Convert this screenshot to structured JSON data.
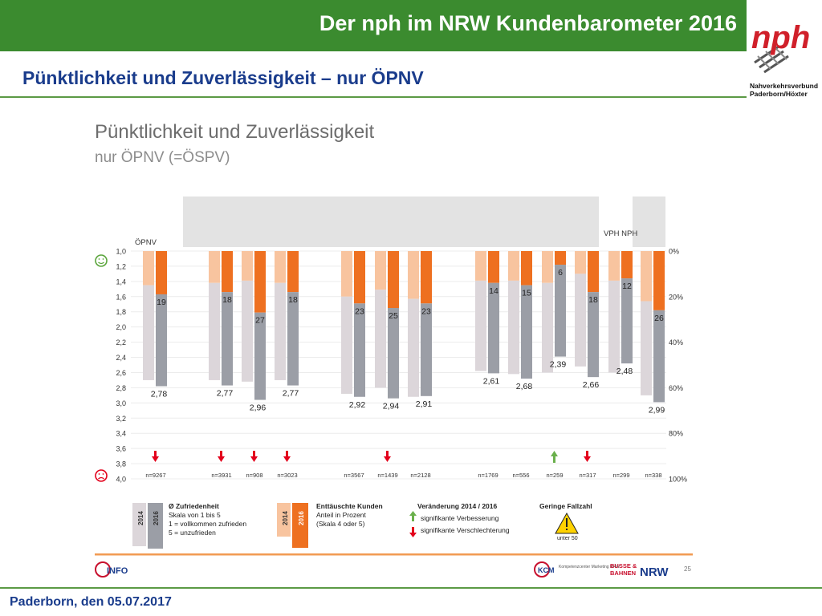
{
  "header": {
    "title": "Der nph im NRW Kundenbarometer 2016"
  },
  "logo": {
    "mark": "nph",
    "line1": "Nahverkehrsverbund",
    "line2": "Paderborn/Höxter"
  },
  "subtitle": "Pünktlichkeit und Zuverlässigkeit – nur ÖPNV",
  "footer": {
    "text": "Paderborn, den 05.07.2017"
  },
  "slide": {
    "page_number": "25",
    "logo_left": "INFO",
    "logo_mid": "KCM",
    "logo_mid_small": "Kompetenzcenter Marketing NRW",
    "logo_right_1": "BUSSE &",
    "logo_right_2": "BAHNEN",
    "logo_right_3": "NRW"
  },
  "colors": {
    "green": "#3b8b2f",
    "bar_2014": "#dcd6da",
    "bar_2016": "#9b9ea6",
    "orange_2014": "#f8c49f",
    "orange_2016": "#ee7020",
    "red_arrow": "#e3001b",
    "green_arrow": "#6ab04c",
    "gray_band": "#e3e3e3",
    "accent_line": "#f29a52"
  },
  "chart_data": {
    "type": "bar",
    "title": "Pünktlichkeit und Zuverlässigkeit",
    "subtitle": "nur ÖPNV (=ÖSPV)",
    "group_labels": [
      "ÖPNV",
      "VPH NPH"
    ],
    "left_axis": {
      "ticks": [
        "1,0",
        "1,2",
        "1,4",
        "1,6",
        "1,8",
        "2,0",
        "2,2",
        "2,4",
        "2,6",
        "2,8",
        "3,0",
        "3,2",
        "3,4",
        "3,6",
        "3,8",
        "4,0"
      ],
      "range": [
        1.0,
        4.0
      ]
    },
    "right_axis": {
      "ticks": [
        "0%",
        "20%",
        "40%",
        "60%",
        "80%",
        "100%"
      ],
      "range": [
        0,
        100
      ]
    },
    "categories": [
      {
        "n": "n=9267",
        "score_2014": 2.7,
        "score_2016": 2.78,
        "score_label": "2,78",
        "pct_2014": 15,
        "pct_2016": 19,
        "pct_label": "19",
        "change": "down"
      },
      {
        "n": "n=3931",
        "score_2014": 2.7,
        "score_2016": 2.77,
        "score_label": "2,77",
        "pct_2014": 14,
        "pct_2016": 18,
        "pct_label": "18",
        "change": "down"
      },
      {
        "n": "n=908",
        "score_2014": 2.72,
        "score_2016": 2.96,
        "score_label": "2,96",
        "pct_2014": 13,
        "pct_2016": 27,
        "pct_label": "27",
        "change": "down"
      },
      {
        "n": "n=3023",
        "score_2014": 2.7,
        "score_2016": 2.77,
        "score_label": "2,77",
        "pct_2014": 14,
        "pct_2016": 18,
        "pct_label": "18",
        "change": "down"
      },
      {
        "n": "n=3567",
        "score_2014": 2.88,
        "score_2016": 2.92,
        "score_label": "2,92",
        "pct_2014": 20,
        "pct_2016": 23,
        "pct_label": "23",
        "change": ""
      },
      {
        "n": "n=1439",
        "score_2014": 2.8,
        "score_2016": 2.94,
        "score_label": "2,94",
        "pct_2014": 17,
        "pct_2016": 25,
        "pct_label": "25",
        "change": "down"
      },
      {
        "n": "n=2128",
        "score_2014": 2.92,
        "score_2016": 2.91,
        "score_label": "2,91",
        "pct_2014": 21,
        "pct_2016": 23,
        "pct_label": "23",
        "change": ""
      },
      {
        "n": "n=1769",
        "score_2014": 2.58,
        "score_2016": 2.61,
        "score_label": "2,61",
        "pct_2014": 13,
        "pct_2016": 14,
        "pct_label": "14",
        "change": ""
      },
      {
        "n": "n=556",
        "score_2014": 2.62,
        "score_2016": 2.68,
        "score_label": "2,68",
        "pct_2014": 13,
        "pct_2016": 15,
        "pct_label": "15",
        "change": ""
      },
      {
        "n": "n=259",
        "score_2014": 2.6,
        "score_2016": 2.39,
        "score_label": "2,39",
        "pct_2014": 14,
        "pct_2016": 6,
        "pct_label": "6",
        "change": "up"
      },
      {
        "n": "n=317",
        "score_2014": 2.52,
        "score_2016": 2.66,
        "score_label": "2,66",
        "pct_2014": 10,
        "pct_2016": 18,
        "pct_label": "18",
        "change": "down"
      },
      {
        "n": "n=299",
        "score_2014": 2.6,
        "score_2016": 2.48,
        "score_label": "2,48",
        "pct_2014": 13,
        "pct_2016": 12,
        "pct_label": "12",
        "change": ""
      },
      {
        "n": "n=338",
        "score_2014": 2.9,
        "score_2016": 2.99,
        "score_label": "2,99",
        "pct_2014": 22,
        "pct_2016": 26,
        "pct_label": "26",
        "change": ""
      }
    ],
    "legend": {
      "year_2014": "2014",
      "year_2016": "2016",
      "satisfaction_title": "Ø Zufriedenheit",
      "satisfaction_lines": [
        "Skala von 1 bis 5",
        "1 = vollkommen zufrieden",
        "5 = unzufrieden"
      ],
      "disappointed_title": "Enttäuschte Kunden",
      "disappointed_lines": [
        "Anteil in Prozent",
        "(Skala 4 oder 5)"
      ],
      "change_title": "Veränderung 2014 / 2016",
      "change_up": "signifikante Verbesserung",
      "change_down": "signifikante Verschlechterung",
      "small_n_title": "Geringe Fallzahl",
      "small_n_note": "unter 50"
    }
  }
}
